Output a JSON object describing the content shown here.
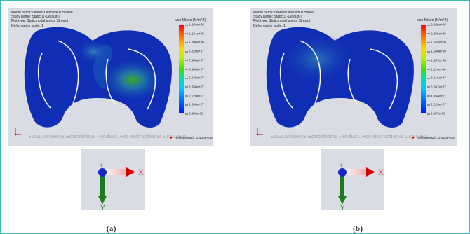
{
  "panels": [
    {
      "model_name": "Model name: DowelsLateralBOTH-New",
      "study_name": "Study name: Static 1(-Default-)",
      "plot_type": "Plot type: Static nodal stress Stress1",
      "deformation_scale": "Deformation scale: 1",
      "legend_title": "von Mises (N/m^2)",
      "ticks": [
        "1.260e+08",
        "1.134e+08",
        "1.008e+08",
        "8.820e+07",
        "7.560e+07",
        "6.300e+07",
        "5.040e+07",
        "3.780e+07",
        "2.520e+07",
        "1.260e+07",
        "3.963e-06"
      ],
      "yield": "Yield strength: 2.400e+08",
      "watermark": "SOLIDWORKS Educational Product. For Instructional Use Only.",
      "caption": "(a)"
    },
    {
      "model_name": "Model name: DowelsLateralBOTHNew",
      "study_name": "Study name: Static 1(-Default-)",
      "plot_type": "Plot type: Static nodal stress Stress1",
      "deformation_scale": "Deformation scale: 1",
      "legend_title": "von Mises (N/m^2)",
      "ticks": [
        "2.229e+08",
        "2.006e+08",
        "1.783e+08",
        "1.560e+08",
        "1.337e+08",
        "1.114e+08",
        "8.916e+07",
        "6.687e+07",
        "4.458e+07",
        "2.229e+07",
        "1.807e-06"
      ],
      "yield": "Yield strength: 2.400e+08",
      "watermark": "SOLIDWORKS Educational Product. For Instructional Use Only.",
      "caption": "(b)"
    }
  ],
  "axes": {
    "x_label": "X",
    "y_label": "Y",
    "z_label": "Z"
  },
  "colors": {
    "frame": "#3cb9b4",
    "panel_bg": "#d9dde3",
    "model_blue": "#0f2db5",
    "x_axis": "#d40000",
    "y_axis": "#1e7a1e",
    "z_axis": "#1428c8"
  }
}
